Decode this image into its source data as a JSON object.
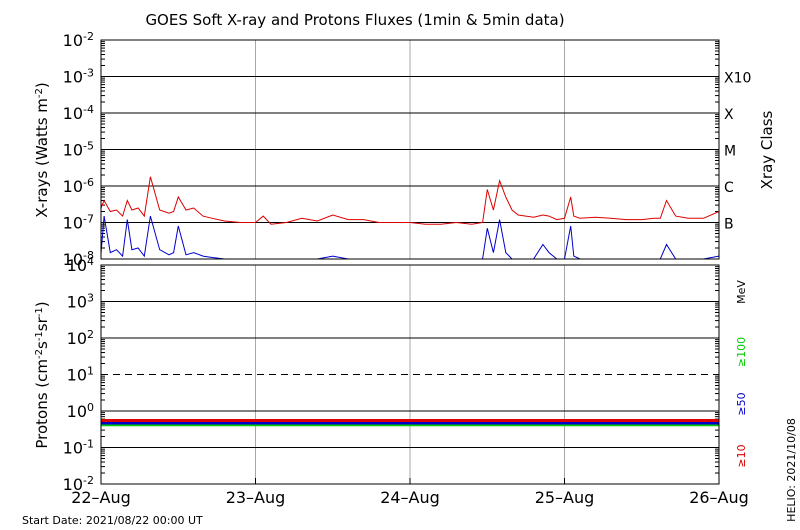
{
  "chart_data": [
    {
      "type": "line",
      "panel": "xray",
      "title": "GOES Soft X-ray and Protons Fluxes   (1min & 5min data)",
      "ylabel_prefix": "X-rays (Watts m",
      "ylabel_sup": "-2",
      "ylabel_suffix": ")",
      "yscale": "log",
      "ylim": [
        1e-08,
        0.01
      ],
      "y_ticks": [
        {
          "base": "10",
          "exp": "-2"
        },
        {
          "base": "10",
          "exp": "-3"
        },
        {
          "base": "10",
          "exp": "-4"
        },
        {
          "base": "10",
          "exp": "-5"
        },
        {
          "base": "10",
          "exp": "-6"
        },
        {
          "base": "10",
          "exp": "-7"
        },
        {
          "base": "10",
          "exp": "-8"
        }
      ],
      "right_axis_title": "Xray Class",
      "classes": [
        {
          "label": "X10",
          "value": 0.001
        },
        {
          "label": "X",
          "value": 0.0001
        },
        {
          "label": "M",
          "value": 1e-05
        },
        {
          "label": "C",
          "value": 1e-06
        },
        {
          "label": "B",
          "value": 1e-07
        }
      ],
      "grid": true,
      "series": [
        {
          "color": "#dd0000",
          "x": [
            0,
            0.02,
            0.06,
            0.1,
            0.14,
            0.17,
            0.2,
            0.24,
            0.28,
            0.32,
            0.38,
            0.44,
            0.47,
            0.5,
            0.55,
            0.6,
            0.66,
            0.72,
            0.8,
            0.9,
            1.0,
            1.05,
            1.1,
            1.2,
            1.3,
            1.4,
            1.5,
            1.6,
            1.7,
            1.8,
            1.9,
            2.0,
            2.1,
            2.2,
            2.3,
            2.4,
            2.47,
            2.5,
            2.54,
            2.58,
            2.62,
            2.66,
            2.7,
            2.75,
            2.8,
            2.86,
            2.9,
            2.95,
            3.0,
            3.04,
            3.06,
            3.1,
            3.2,
            3.3,
            3.4,
            3.5,
            3.58,
            3.62,
            3.66,
            3.72,
            3.8,
            3.9,
            4.0
          ],
          "y": [
            2.5e-07,
            4e-07,
            2e-07,
            2.2e-07,
            1.5e-07,
            4e-07,
            2.2e-07,
            2.5e-07,
            1.5e-07,
            1.8e-06,
            2.2e-07,
            1.8e-07,
            2e-07,
            5e-07,
            2.2e-07,
            2.5e-07,
            1.5e-07,
            1.3e-07,
            1.1e-07,
            1e-07,
            1e-07,
            1.5e-07,
            9e-08,
            1e-07,
            1.3e-07,
            1.1e-07,
            1.6e-07,
            1.2e-07,
            1.2e-07,
            1e-07,
            1e-07,
            1e-07,
            9e-08,
            9e-08,
            1e-07,
            9e-08,
            1e-07,
            8e-07,
            2.2e-07,
            1.4e-06,
            5e-07,
            2.2e-07,
            1.6e-07,
            1.5e-07,
            1.4e-07,
            1.6e-07,
            1.5e-07,
            1.2e-07,
            1.3e-07,
            5e-07,
            1.5e-07,
            1.3e-07,
            1.4e-07,
            1.3e-07,
            1.2e-07,
            1.2e-07,
            1.3e-07,
            1.3e-07,
            4e-07,
            1.5e-07,
            1.3e-07,
            1.3e-07,
            2e-07
          ]
        },
        {
          "color": "#0000cc",
          "x": [
            0,
            0.02,
            0.06,
            0.1,
            0.14,
            0.17,
            0.2,
            0.24,
            0.28,
            0.32,
            0.38,
            0.44,
            0.47,
            0.5,
            0.55,
            0.6,
            0.66,
            0.72,
            0.8,
            0.9,
            1.0,
            1.1,
            1.2,
            1.3,
            1.4,
            1.5,
            1.6,
            1.7,
            1.8,
            1.9,
            2.0,
            2.1,
            2.2,
            2.3,
            2.4,
            2.47,
            2.5,
            2.54,
            2.58,
            2.62,
            2.66,
            2.7,
            2.75,
            2.8,
            2.86,
            2.9,
            2.95,
            3.0,
            3.04,
            3.06,
            3.1,
            3.2,
            3.3,
            3.4,
            3.5,
            3.58,
            3.62,
            3.66,
            3.72,
            3.8,
            3.9,
            4.0
          ],
          "y": [
            1.4e-08,
            1.5e-07,
            1.5e-08,
            1.8e-08,
            1.2e-08,
            1.2e-07,
            1.8e-08,
            2e-08,
            1.2e-08,
            1.5e-07,
            1.8e-08,
            1.3e-08,
            1.5e-08,
            8e-08,
            1.3e-08,
            1.5e-08,
            1.2e-08,
            1.1e-08,
            1e-08,
            1e-08,
            1e-08,
            1e-08,
            1e-08,
            1e-08,
            1e-08,
            1.2e-08,
            1e-08,
            1e-08,
            1e-08,
            1e-08,
            1e-08,
            1e-08,
            1e-08,
            1e-08,
            1e-08,
            1e-08,
            7e-08,
            1.5e-08,
            1.2e-07,
            1.5e-08,
            1e-08,
            1e-08,
            1e-08,
            1e-08,
            2.5e-08,
            1.5e-08,
            1e-08,
            1e-08,
            8e-08,
            1.2e-08,
            1e-08,
            1e-08,
            1e-08,
            1e-08,
            1e-08,
            1e-08,
            1e-08,
            2.5e-08,
            1e-08,
            1e-08,
            1e-08,
            1.2e-08
          ]
        }
      ]
    },
    {
      "type": "line",
      "panel": "protons",
      "ylabel_prefix": "Protons (cm",
      "ylabel_sup1": "-2",
      "ylabel_mid1": "s",
      "ylabel_sup2": "-1",
      "ylabel_mid2": "sr",
      "ylabel_sup3": "-1",
      "ylabel_suffix": ")",
      "yscale": "log",
      "ylim": [
        0.01,
        10000
      ],
      "y_ticks": [
        {
          "base": "10",
          "exp": "4"
        },
        {
          "base": "10",
          "exp": "3"
        },
        {
          "base": "10",
          "exp": "2"
        },
        {
          "base": "10",
          "exp": "1"
        },
        {
          "base": "10",
          "exp": "0"
        },
        {
          "base": "10",
          "exp": "-1"
        },
        {
          "base": "10",
          "exp": "-2"
        }
      ],
      "dashed_threshold": 10,
      "energy_unit": "MeV",
      "grid": true,
      "series": [
        {
          "name": "≥100",
          "color": "#00cc00",
          "level": 0.42
        },
        {
          "name": "≥50",
          "color": "#0000cc",
          "level": 0.47
        },
        {
          "name": "≥10",
          "color": "#dd0000",
          "level": 0.55
        }
      ]
    }
  ],
  "x_axis": {
    "xlim": [
      0,
      4
    ],
    "ticks": [
      {
        "x": 0,
        "label": "22–Aug"
      },
      {
        "x": 1,
        "label": "23–Aug"
      },
      {
        "x": 2,
        "label": "24–Aug"
      },
      {
        "x": 3,
        "label": "25–Aug"
      },
      {
        "x": 4,
        "label": "26–Aug"
      }
    ]
  },
  "footer": {
    "start_date": "Start Date: 2021/08/22 00:00 UT",
    "helio": "HELIO: 2021/10/08"
  }
}
